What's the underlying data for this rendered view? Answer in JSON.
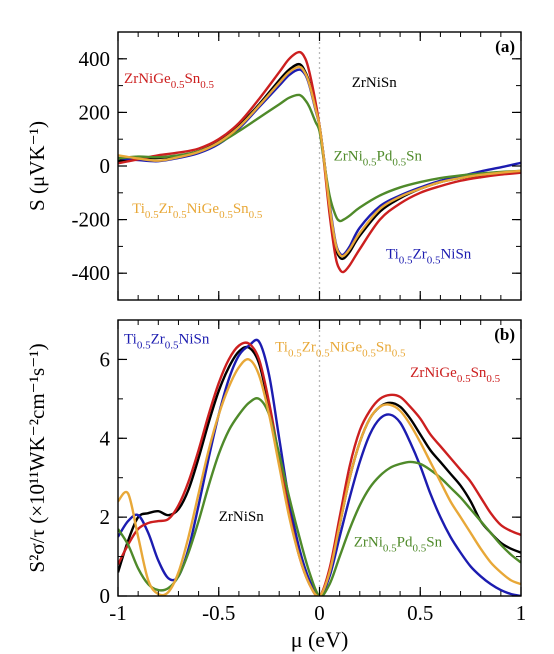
{
  "chart_data": [
    {
      "type": "line",
      "panel_label": "(a)",
      "ylabel": "S (μVK⁻¹)",
      "xlabel": "",
      "xlim": [
        -1,
        1
      ],
      "ylim": [
        -500,
        500
      ],
      "xticks": [
        -1,
        -0.5,
        0,
        0.5,
        1
      ],
      "yticks": [
        400,
        200,
        0,
        -200,
        -400
      ],
      "ytick_labels": [
        "400",
        "200",
        "0",
        "-200",
        "-400"
      ],
      "grid": false,
      "reference_line_x": 0,
      "x": [
        -1.0,
        -0.9,
        -0.8,
        -0.7,
        -0.6,
        -0.5,
        -0.4,
        -0.3,
        -0.2,
        -0.15,
        -0.1,
        -0.07,
        -0.05,
        -0.02,
        0.0,
        0.02,
        0.05,
        0.08,
        0.1,
        0.12,
        0.15,
        0.2,
        0.3,
        0.4,
        0.5,
        0.6,
        0.7,
        0.8,
        0.9,
        1.0
      ],
      "series": [
        {
          "id": "zrnisn",
          "color": "#000000",
          "values": [
            18,
            30,
            30,
            38,
            55,
            90,
            150,
            230,
            320,
            360,
            380,
            350,
            310,
            220,
            150,
            40,
            -150,
            -300,
            -340,
            -345,
            -320,
            -260,
            -170,
            -120,
            -85,
            -60,
            -45,
            -35,
            -25,
            -20
          ]
        },
        {
          "id": "ti-zr-nisn",
          "color": "#1c1cb0",
          "values": [
            30,
            22,
            18,
            30,
            48,
            82,
            140,
            220,
            300,
            340,
            360,
            340,
            300,
            210,
            150,
            40,
            -140,
            -285,
            -325,
            -330,
            -300,
            -230,
            -150,
            -110,
            -80,
            -55,
            -38,
            -20,
            -5,
            12
          ]
        },
        {
          "id": "zrnige-sn",
          "color": "#cc1f1f",
          "values": [
            10,
            25,
            40,
            50,
            65,
            100,
            160,
            250,
            350,
            400,
            425,
            400,
            350,
            240,
            150,
            30,
            -180,
            -340,
            -385,
            -395,
            -370,
            -310,
            -200,
            -140,
            -100,
            -75,
            -55,
            -42,
            -32,
            -25
          ]
        },
        {
          "id": "zrni-pd-sn",
          "color": "#4f8a2a",
          "values": [
            28,
            35,
            33,
            40,
            55,
            85,
            130,
            180,
            230,
            255,
            265,
            245,
            220,
            165,
            130,
            30,
            -110,
            -185,
            -205,
            -200,
            -185,
            -155,
            -110,
            -80,
            -60,
            -45,
            -35,
            -28,
            -22,
            -18
          ]
        },
        {
          "id": "ti-zr-nige-sn",
          "color": "#e8a838",
          "values": [
            40,
            28,
            20,
            33,
            52,
            88,
            145,
            225,
            310,
            350,
            370,
            345,
            305,
            215,
            150,
            40,
            -150,
            -290,
            -330,
            -335,
            -310,
            -250,
            -160,
            -115,
            -85,
            -60,
            -45,
            -33,
            -25,
            -18
          ]
        }
      ],
      "labels": [
        {
          "id": "zrnige-sn",
          "color": "#cc1f1f",
          "parts": [
            [
              "ZrNiGe",
              ""
            ],
            [
              "0.5",
              "sub"
            ],
            [
              "Sn",
              ""
            ],
            [
              "0.5",
              "sub"
            ]
          ],
          "at": [
            -0.97,
            310
          ],
          "size": 15
        },
        {
          "id": "zrnisn",
          "color": "#000000",
          "parts": [
            [
              "ZrNiSn",
              ""
            ]
          ],
          "at": [
            0.16,
            295
          ],
          "size": 15
        },
        {
          "id": "zrni-pd-sn",
          "color": "#4f8a2a",
          "parts": [
            [
              "ZrNi",
              ""
            ],
            [
              "0.5",
              "sub"
            ],
            [
              "Pd",
              ""
            ],
            [
              "0.5",
              "sub"
            ],
            [
              "Sn",
              ""
            ]
          ],
          "at": [
            0.07,
            20
          ],
          "size": 15
        },
        {
          "id": "ti-zr-nige-sn",
          "color": "#e8a838",
          "parts": [
            [
              "Ti",
              ""
            ],
            [
              "0.5",
              "sub"
            ],
            [
              "Zr",
              ""
            ],
            [
              "0.5",
              "sub"
            ],
            [
              "NiGe",
              ""
            ],
            [
              "0.5",
              "sub"
            ],
            [
              "Sn",
              ""
            ],
            [
              "0.5",
              "sub"
            ]
          ],
          "at": [
            -0.93,
            -175
          ],
          "size": 15
        },
        {
          "id": "ti-zr-nisn",
          "color": "#1c1cb0",
          "parts": [
            [
              "Ti",
              ""
            ],
            [
              "0.5",
              "sub"
            ],
            [
              "Zr",
              ""
            ],
            [
              "0.5",
              "sub"
            ],
            [
              "NiSn",
              ""
            ]
          ],
          "at": [
            0.33,
            -345
          ],
          "size": 15
        }
      ]
    },
    {
      "type": "line",
      "panel_label": "(b)",
      "ylabel": "S²σ/τ (×10¹¹WK⁻²cm⁻¹s⁻¹)",
      "xlabel": "μ (eV)",
      "xlim": [
        -1,
        1
      ],
      "ylim": [
        0,
        7
      ],
      "xticks": [
        -1,
        -0.5,
        0,
        0.5,
        1
      ],
      "xtick_labels": [
        "-1",
        "-0.5",
        "0",
        "0.5",
        "1"
      ],
      "yticks": [
        0,
        2,
        4,
        6
      ],
      "ytick_labels": [
        "0",
        "2",
        "4",
        "6"
      ],
      "grid": false,
      "reference_line_x": 0,
      "x": [
        -1.0,
        -0.95,
        -0.9,
        -0.85,
        -0.8,
        -0.75,
        -0.7,
        -0.65,
        -0.6,
        -0.55,
        -0.5,
        -0.45,
        -0.4,
        -0.35,
        -0.3,
        -0.25,
        -0.2,
        -0.15,
        -0.1,
        -0.05,
        0.0,
        0.05,
        0.1,
        0.15,
        0.2,
        0.25,
        0.3,
        0.35,
        0.4,
        0.45,
        0.5,
        0.55,
        0.6,
        0.65,
        0.7,
        0.75,
        0.8,
        0.85,
        0.9,
        0.95,
        1.0
      ],
      "series": [
        {
          "id": "zrnisn",
          "color": "#000000",
          "values": [
            0.6,
            1.4,
            2.0,
            2.1,
            2.15,
            2.05,
            2.2,
            2.7,
            3.5,
            4.4,
            5.2,
            5.8,
            6.2,
            6.3,
            5.9,
            4.8,
            3.5,
            2.2,
            1.1,
            0.35,
            0.0,
            0.6,
            1.8,
            3.0,
            3.9,
            4.5,
            4.8,
            4.9,
            4.8,
            4.5,
            4.1,
            3.7,
            3.4,
            3.1,
            2.8,
            2.4,
            1.9,
            1.6,
            1.35,
            1.2,
            1.1
          ]
        },
        {
          "id": "ti-zr-nisn",
          "color": "#1c1cb0",
          "values": [
            1.5,
            1.9,
            2.05,
            1.6,
            0.9,
            0.45,
            0.5,
            1.2,
            2.3,
            3.5,
            4.6,
            5.5,
            6.1,
            6.35,
            6.45,
            5.6,
            4.0,
            2.4,
            1.2,
            0.4,
            0.0,
            0.5,
            1.5,
            2.5,
            3.4,
            4.1,
            4.5,
            4.6,
            4.4,
            3.9,
            3.3,
            2.6,
            2.0,
            1.5,
            1.1,
            0.75,
            0.5,
            0.3,
            0.15,
            0.05,
            0.0
          ]
        },
        {
          "id": "zrnige-sn",
          "color": "#cc1f1f",
          "values": [
            0.8,
            1.3,
            1.7,
            1.85,
            1.9,
            1.95,
            2.3,
            2.9,
            3.7,
            4.6,
            5.4,
            6.0,
            6.35,
            6.4,
            6.0,
            4.9,
            3.5,
            2.1,
            1.0,
            0.3,
            0.0,
            0.7,
            2.0,
            3.3,
            4.2,
            4.7,
            5.0,
            5.1,
            5.05,
            4.8,
            4.5,
            4.1,
            3.8,
            3.5,
            3.2,
            2.9,
            2.5,
            2.1,
            1.8,
            1.65,
            1.55
          ]
        },
        {
          "id": "zrni-pd-sn",
          "color": "#4f8a2a",
          "values": [
            1.7,
            1.3,
            0.7,
            0.3,
            0.15,
            0.2,
            0.5,
            1.1,
            1.9,
            2.8,
            3.6,
            4.2,
            4.6,
            4.9,
            5.0,
            4.6,
            3.6,
            2.5,
            1.5,
            0.6,
            0.0,
            0.3,
            1.0,
            1.7,
            2.3,
            2.75,
            3.05,
            3.25,
            3.35,
            3.4,
            3.35,
            3.2,
            3.0,
            2.75,
            2.5,
            2.2,
            1.9,
            1.6,
            1.3,
            1.05,
            0.85
          ]
        },
        {
          "id": "ti-zr-nige-sn",
          "color": "#e8a838",
          "values": [
            2.4,
            2.6,
            1.5,
            0.4,
            0.05,
            0.1,
            0.6,
            1.5,
            2.6,
            3.7,
            4.6,
            5.3,
            5.8,
            6.0,
            5.6,
            4.6,
            3.3,
            2.0,
            1.0,
            0.3,
            0.0,
            0.6,
            1.8,
            3.0,
            3.9,
            4.5,
            4.8,
            4.85,
            4.7,
            4.35,
            3.9,
            3.4,
            2.9,
            2.4,
            2.0,
            1.6,
            1.2,
            0.85,
            0.6,
            0.4,
            0.3
          ]
        }
      ],
      "labels": [
        {
          "id": "ti-zr-nisn",
          "color": "#1c1cb0",
          "parts": [
            [
              "Ti",
              ""
            ],
            [
              "0.5",
              "sub"
            ],
            [
              "Zr",
              ""
            ],
            [
              "0.5",
              "sub"
            ],
            [
              "NiSn",
              ""
            ]
          ],
          "at": [
            -0.97,
            6.4
          ],
          "size": 15
        },
        {
          "id": "ti-zr-nige-sn",
          "color": "#e8a838",
          "parts": [
            [
              "Ti",
              ""
            ],
            [
              "0.5",
              "sub"
            ],
            [
              "Zr",
              ""
            ],
            [
              "0.5",
              "sub"
            ],
            [
              "NiGe",
              ""
            ],
            [
              "0.5",
              "sub"
            ],
            [
              "Sn",
              ""
            ],
            [
              "0.5",
              "sub"
            ]
          ],
          "at": [
            -0.22,
            6.2
          ],
          "size": 15
        },
        {
          "id": "zrnige-sn",
          "color": "#cc1f1f",
          "parts": [
            [
              "ZrNiGe",
              ""
            ],
            [
              "0.5",
              "sub"
            ],
            [
              "Sn",
              ""
            ],
            [
              "0.5",
              "sub"
            ]
          ],
          "at": [
            0.45,
            5.55
          ],
          "size": 15
        },
        {
          "id": "zrnisn",
          "color": "#000000",
          "parts": [
            [
              "ZrNiSn",
              ""
            ]
          ],
          "at": [
            -0.5,
            1.9
          ],
          "size": 15
        },
        {
          "id": "zrni-pd-sn",
          "color": "#4f8a2a",
          "parts": [
            [
              "ZrNi",
              ""
            ],
            [
              "0.5",
              "sub"
            ],
            [
              "Pd",
              ""
            ],
            [
              "0.5",
              "sub"
            ],
            [
              "Sn",
              ""
            ]
          ],
          "at": [
            0.17,
            1.25
          ],
          "size": 15
        }
      ]
    }
  ]
}
